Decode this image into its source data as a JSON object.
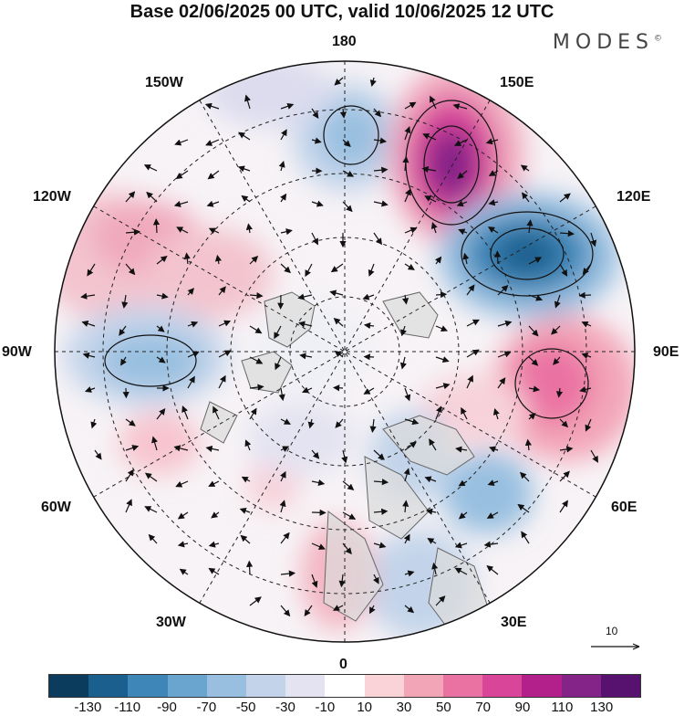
{
  "header": {
    "title": "Base 02/06/2025 00 UTC, valid 10/06/2025 12 UTC",
    "brand": "MODES",
    "brand_mark": "©"
  },
  "map": {
    "projection": "north-polar-stereographic",
    "longitude_labels": {
      "top": "180",
      "top_left": "150W",
      "top_right": "150E",
      "upper_left": "120W",
      "upper_right": "120E",
      "left": "90W",
      "right": "90E",
      "lower_left": "60W",
      "lower_right": "60E",
      "bottom_left": "30W",
      "bottom_right": "30E",
      "bottom": "0"
    },
    "reference_vector": "10",
    "colors": {
      "coast": "#666666",
      "land_fill": "#dddddd",
      "grid": "#222222"
    }
  },
  "colorbar": {
    "colors": [
      "#0b3c5d",
      "#1a5f8e",
      "#3e86b8",
      "#6aa5cf",
      "#98bfe0",
      "#c3d4ea",
      "#e3e3f1",
      "#ffffff",
      "#fad3d8",
      "#f3a5b8",
      "#ea72a2",
      "#d94599",
      "#b3208b",
      "#842388",
      "#56126e"
    ],
    "tick_labels": [
      "-130",
      "-110",
      "-90",
      "-70",
      "-50",
      "-30",
      "-10",
      "10",
      "30",
      "50",
      "70",
      "90",
      "110",
      "130"
    ]
  }
}
